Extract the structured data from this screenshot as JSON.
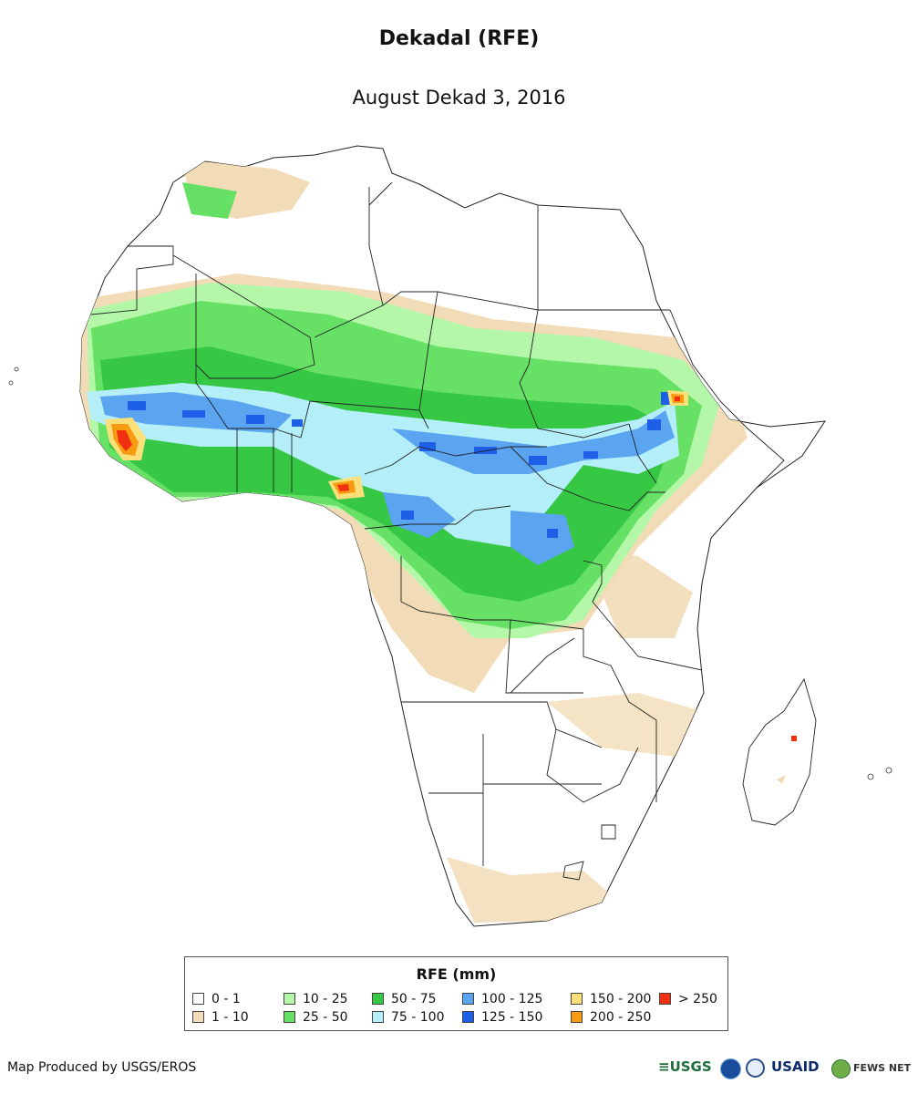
{
  "header": {
    "title": "Dekadal (RFE)",
    "subtitle": "August Dekad 3, 2016"
  },
  "legend": {
    "title": "RFE (mm)",
    "items": [
      {
        "label": "0 - 1",
        "color": "#ffffff"
      },
      {
        "label": "1 - 10",
        "color": "#f1dcb7"
      },
      {
        "label": "10 - 25",
        "color": "#b4f7a8"
      },
      {
        "label": "25 - 50",
        "color": "#66e065"
      },
      {
        "label": "50 - 75",
        "color": "#36c845"
      },
      {
        "label": "75 - 100",
        "color": "#b4eef9"
      },
      {
        "label": "100 - 125",
        "color": "#5aa4f0"
      },
      {
        "label": "125 - 150",
        "color": "#1d5fe6"
      },
      {
        "label": "150 - 200",
        "color": "#fbe07a"
      },
      {
        "label": "200 - 250",
        "color": "#f89a12"
      },
      {
        "label": "> 250",
        "color": "#f03010"
      }
    ]
  },
  "footer": {
    "credit": "Map Produced by USGS/EROS",
    "logos": [
      "USGS",
      "NOAA",
      "USAID",
      "FEWS NET"
    ]
  }
}
